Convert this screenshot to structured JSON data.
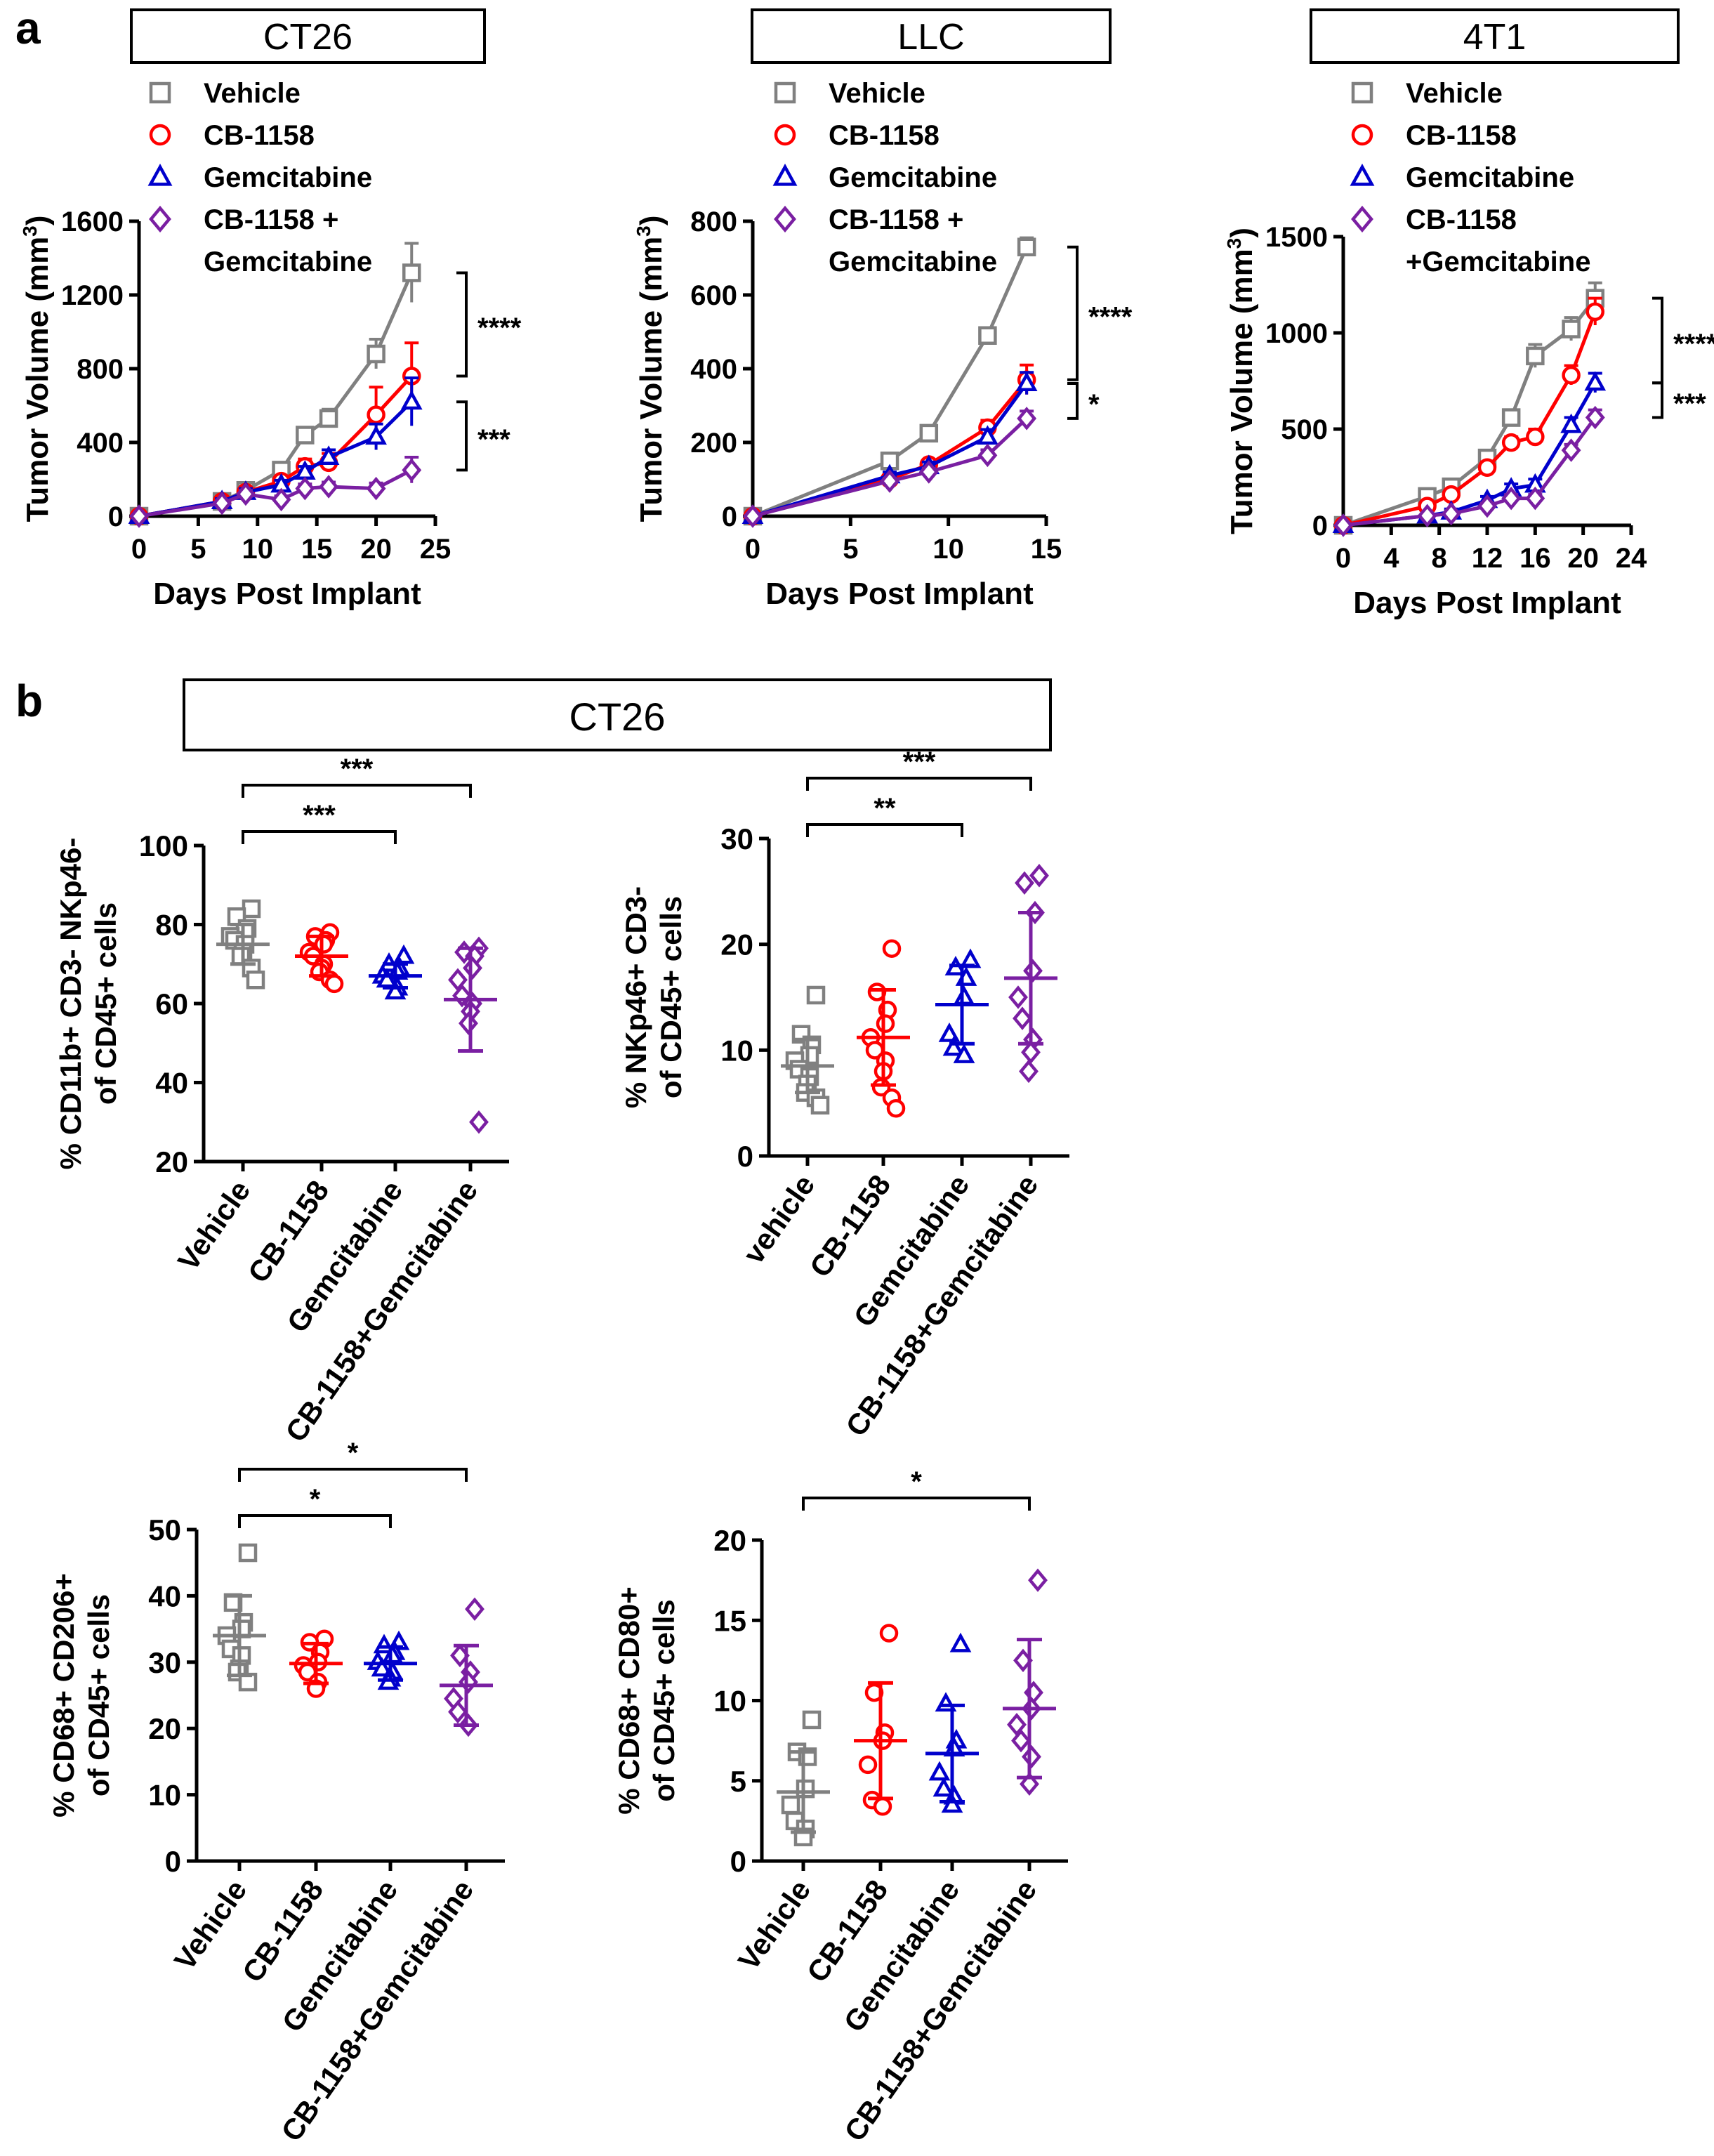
{
  "figure": {
    "panel_a_label": "a",
    "panel_b_label": "b",
    "panel_b_title": "CT26"
  },
  "colors": {
    "vehicle": "#808080",
    "cb1158": "#ff0000",
    "gemcitabine": "#0000cc",
    "combo": "#7a1fa2"
  },
  "markers": {
    "vehicle": "square",
    "cb1158": "circle",
    "gemcitabine": "triangle",
    "combo": "diamond"
  },
  "chart_data": [
    {
      "type": "line",
      "title": "CT26",
      "xlabel": "Days Post Implant",
      "ylabel": "Tumor Volume (mm",
      "ylabel_sup": "3",
      "ylabel_close": ")",
      "xlim": [
        0,
        25
      ],
      "ylim": [
        0,
        1600
      ],
      "xticks": [
        0,
        5,
        10,
        15,
        20,
        25
      ],
      "yticks": [
        0,
        400,
        800,
        1200,
        1600
      ],
      "legend": [
        "Vehicle",
        "CB-1158",
        "Gemcitabine",
        "CB-1158 +",
        "Gemcitabine"
      ],
      "series": [
        {
          "name": "Vehicle",
          "key": "vehicle",
          "x": [
            0,
            7,
            9,
            12,
            14,
            16,
            20,
            23
          ],
          "y": [
            0,
            80,
            140,
            250,
            440,
            530,
            880,
            1320
          ],
          "err": [
            0,
            15,
            20,
            30,
            40,
            50,
            80,
            160
          ]
        },
        {
          "name": "CB-1158",
          "key": "cb1158",
          "x": [
            0,
            7,
            9,
            12,
            14,
            16,
            20,
            23
          ],
          "y": [
            0,
            80,
            130,
            190,
            270,
            290,
            550,
            760
          ],
          "err": [
            0,
            15,
            20,
            25,
            40,
            50,
            150,
            180
          ]
        },
        {
          "name": "Gemcitabine",
          "key": "gemcitabine",
          "x": [
            0,
            7,
            9,
            12,
            14,
            16,
            20,
            23
          ],
          "y": [
            0,
            80,
            130,
            170,
            240,
            320,
            430,
            620
          ],
          "err": [
            0,
            15,
            20,
            25,
            30,
            40,
            70,
            130
          ]
        },
        {
          "name": "CB-1158 + Gemcitabine",
          "key": "combo",
          "x": [
            0,
            7,
            9,
            12,
            14,
            16,
            20,
            23
          ],
          "y": [
            0,
            70,
            120,
            90,
            150,
            160,
            150,
            250
          ],
          "err": [
            0,
            15,
            20,
            20,
            25,
            25,
            30,
            70
          ]
        }
      ],
      "sig": [
        {
          "label": "****",
          "from": 1320,
          "to": 760
        },
        {
          "label": "***",
          "from": 620,
          "to": 250
        }
      ]
    },
    {
      "type": "line",
      "title": "LLC",
      "xlabel": "Days Post Implant",
      "ylabel": "Tumor Volume (mm",
      "ylabel_sup": "3",
      "ylabel_close": ")",
      "xlim": [
        0,
        15
      ],
      "ylim": [
        0,
        800
      ],
      "xticks": [
        0,
        5,
        10,
        15
      ],
      "yticks": [
        0,
        200,
        400,
        600,
        800
      ],
      "legend": [
        "Vehicle",
        "CB-1158",
        "Gemcitabine",
        "CB-1158 +",
        "Gemcitabine"
      ],
      "series": [
        {
          "name": "Vehicle",
          "key": "vehicle",
          "x": [
            0,
            7,
            9,
            12,
            14
          ],
          "y": [
            0,
            150,
            225,
            490,
            730
          ],
          "err": [
            0,
            10,
            12,
            20,
            25
          ]
        },
        {
          "name": "CB-1158",
          "key": "cb1158",
          "x": [
            0,
            7,
            9,
            12,
            14
          ],
          "y": [
            0,
            100,
            140,
            240,
            370
          ],
          "err": [
            0,
            10,
            12,
            20,
            40
          ]
        },
        {
          "name": "Gemcitabine",
          "key": "gemcitabine",
          "x": [
            0,
            7,
            9,
            12,
            14
          ],
          "y": [
            0,
            110,
            135,
            215,
            360
          ],
          "err": [
            0,
            10,
            12,
            20,
            30
          ]
        },
        {
          "name": "CB-1158 + Gemcitabine",
          "key": "combo",
          "x": [
            0,
            7,
            9,
            12,
            14
          ],
          "y": [
            0,
            95,
            120,
            165,
            265
          ],
          "err": [
            0,
            8,
            10,
            15,
            20
          ]
        }
      ],
      "sig": [
        {
          "label": "****",
          "from": 730,
          "to": 370
        },
        {
          "label": "*",
          "from": 360,
          "to": 265
        }
      ]
    },
    {
      "type": "line",
      "title": "4T1",
      "xlabel": "Days Post Implant",
      "ylabel": "Tumor Volume (mm",
      "ylabel_sup": "3",
      "ylabel_close": ")",
      "xlim": [
        0,
        24
      ],
      "ylim": [
        0,
        1500
      ],
      "xticks": [
        0,
        4,
        8,
        12,
        16,
        20,
        24
      ],
      "yticks": [
        0,
        500,
        1000,
        1500
      ],
      "legend": [
        "Vehicle",
        "CB-1158",
        "Gemcitabine",
        "CB-1158",
        "+Gemcitabine"
      ],
      "series": [
        {
          "name": "Vehicle",
          "key": "vehicle",
          "x": [
            0,
            7,
            9,
            12,
            14,
            16,
            19,
            21
          ],
          "y": [
            0,
            150,
            200,
            350,
            560,
            880,
            1020,
            1180
          ],
          "err": [
            0,
            15,
            20,
            30,
            40,
            60,
            60,
            80
          ]
        },
        {
          "name": "CB-1158",
          "key": "cb1158",
          "x": [
            0,
            7,
            9,
            12,
            14,
            16,
            19,
            21
          ],
          "y": [
            0,
            100,
            160,
            300,
            430,
            460,
            780,
            1110
          ],
          "err": [
            0,
            15,
            20,
            30,
            30,
            40,
            50,
            70
          ]
        },
        {
          "name": "Gemcitabine",
          "key": "gemcitabine",
          "x": [
            0,
            7,
            9,
            12,
            14,
            16,
            19,
            21
          ],
          "y": [
            0,
            50,
            70,
            130,
            190,
            210,
            520,
            740
          ],
          "err": [
            0,
            10,
            15,
            20,
            25,
            30,
            40,
            50
          ]
        },
        {
          "name": "CB-1158 +Gemcitabine",
          "key": "combo",
          "x": [
            0,
            7,
            9,
            12,
            14,
            16,
            19,
            21
          ],
          "y": [
            0,
            50,
            60,
            100,
            140,
            140,
            390,
            560
          ],
          "err": [
            0,
            10,
            10,
            15,
            20,
            20,
            30,
            40
          ]
        }
      ],
      "sig": [
        {
          "label": "****",
          "from": 1180,
          "to": 740
        },
        {
          "label": "***",
          "from": 740,
          "to": 560
        }
      ]
    },
    {
      "type": "scatter",
      "ylabel_lines": [
        "% CD11b+ CD3- NKp46-",
        "of CD45+ cells"
      ],
      "ylim": [
        20,
        100
      ],
      "yticks": [
        20,
        40,
        60,
        80,
        100
      ],
      "categories": [
        "Vehicle",
        "CB-1158",
        "Gemcitabine",
        "CB-1158+Gemcitabine"
      ],
      "groups": [
        {
          "key": "vehicle",
          "mean": 75,
          "sd": 5,
          "points": [
            84,
            82,
            79,
            78,
            77,
            76,
            75,
            73,
            72,
            69,
            66
          ]
        },
        {
          "key": "cb1158",
          "mean": 72,
          "sd": 5,
          "points": [
            78,
            77,
            76,
            75,
            73,
            72,
            70,
            69,
            68,
            66,
            65
          ]
        },
        {
          "key": "gemcitabine",
          "mean": 67,
          "sd": 3,
          "points": [
            72,
            70,
            69,
            68,
            67,
            66,
            64,
            63
          ]
        },
        {
          "key": "combo",
          "mean": 61,
          "sd": 13,
          "points": [
            74,
            73,
            72,
            69,
            66,
            62,
            60,
            58,
            55,
            30
          ]
        }
      ],
      "sig": [
        {
          "label": "***",
          "from": 0,
          "to": 2,
          "level": 1
        },
        {
          "label": "***",
          "from": 0,
          "to": 3,
          "level": 2
        }
      ]
    },
    {
      "type": "scatter",
      "ylabel_lines": [
        "% NKp46+ CD3-",
        "of CD45+ cells"
      ],
      "ylim": [
        0,
        30
      ],
      "yticks": [
        0,
        10,
        20,
        30
      ],
      "categories": [
        "vehicle",
        "CB-1158",
        "Gemcitabine",
        "CB-1158+Gemcitabine"
      ],
      "groups": [
        {
          "key": "vehicle",
          "mean": 8.5,
          "sd": 2.5,
          "points": [
            15.2,
            11.5,
            10.5,
            9.5,
            9,
            8.2,
            7.5,
            6.8,
            6,
            5.5,
            4.8
          ]
        },
        {
          "key": "cb1158",
          "mean": 11.2,
          "sd": 4.5,
          "points": [
            19.6,
            15.5,
            13.8,
            12.5,
            11.2,
            10,
            9,
            8,
            6.5,
            5.5,
            4.5
          ]
        },
        {
          "key": "gemcitabine",
          "mean": 14.3,
          "sd": 3.7,
          "points": [
            18.5,
            17.8,
            16.8,
            15,
            11.5,
            10.2,
            9.5
          ]
        },
        {
          "key": "combo",
          "mean": 16.8,
          "sd": 6.2,
          "points": [
            26.5,
            25.8,
            23,
            17.5,
            15,
            13,
            11,
            9.8,
            8
          ]
        }
      ],
      "sig": [
        {
          "label": "**",
          "from": 0,
          "to": 2,
          "level": 1
        },
        {
          "label": "***",
          "from": 0,
          "to": 3,
          "level": 2
        }
      ]
    },
    {
      "type": "scatter",
      "ylabel_lines": [
        "% CD68+ CD206+",
        "of CD45+ cells"
      ],
      "ylim": [
        0,
        50
      ],
      "yticks": [
        0,
        10,
        20,
        30,
        40,
        50
      ],
      "categories": [
        "Vehicle",
        "CB-1158",
        "Gemcitabine",
        "CB-1158+Gemcitabine"
      ],
      "groups": [
        {
          "key": "vehicle",
          "mean": 34,
          "sd": 6,
          "points": [
            46.5,
            39,
            36,
            35,
            34,
            32,
            31,
            29,
            28.5,
            27
          ]
        },
        {
          "key": "cb1158",
          "mean": 29.8,
          "sd": 3,
          "points": [
            33.5,
            33,
            31.5,
            30,
            29.5,
            28.5,
            27,
            26
          ]
        },
        {
          "key": "gemcitabine",
          "mean": 29.8,
          "sd": 2.5,
          "points": [
            33,
            32.5,
            31.5,
            31,
            30,
            29,
            28.5,
            27.5,
            27
          ]
        },
        {
          "key": "combo",
          "mean": 26.5,
          "sd": 6,
          "points": [
            38,
            31,
            28.5,
            27,
            24.5,
            22.5,
            20.5
          ]
        }
      ],
      "sig": [
        {
          "label": "*",
          "from": 0,
          "to": 2,
          "level": 1
        },
        {
          "label": "*",
          "from": 0,
          "to": 3,
          "level": 2
        }
      ]
    },
    {
      "type": "scatter",
      "ylabel_lines": [
        "% CD68+ CD80+",
        "of CD45+ cells"
      ],
      "ylim": [
        0,
        20
      ],
      "yticks": [
        0,
        5,
        10,
        15,
        20
      ],
      "categories": [
        "Vehicle",
        "CB-1158",
        "Gemcitabine",
        "CB-1158+Gemcitabine"
      ],
      "groups": [
        {
          "key": "vehicle",
          "mean": 4.3,
          "sd": 2.5,
          "points": [
            8.8,
            6.8,
            6.5,
            4.5,
            3.5,
            2.5,
            2,
            1.5
          ]
        },
        {
          "key": "cb1158",
          "mean": 7.5,
          "sd": 3.6,
          "points": [
            14.2,
            10.5,
            8,
            7.5,
            6,
            3.8,
            3.4
          ]
        },
        {
          "key": "gemcitabine",
          "mean": 6.7,
          "sd": 3,
          "points": [
            13.5,
            9.8,
            7.5,
            7,
            5.5,
            4.5,
            4,
            3.5
          ]
        },
        {
          "key": "combo",
          "mean": 9.5,
          "sd": 4.3,
          "points": [
            17.5,
            12.5,
            10.5,
            9.5,
            8.5,
            7.5,
            6.5,
            4.8
          ]
        }
      ],
      "sig": [
        {
          "label": "*",
          "from": 0,
          "to": 3,
          "level": 1
        }
      ]
    }
  ]
}
